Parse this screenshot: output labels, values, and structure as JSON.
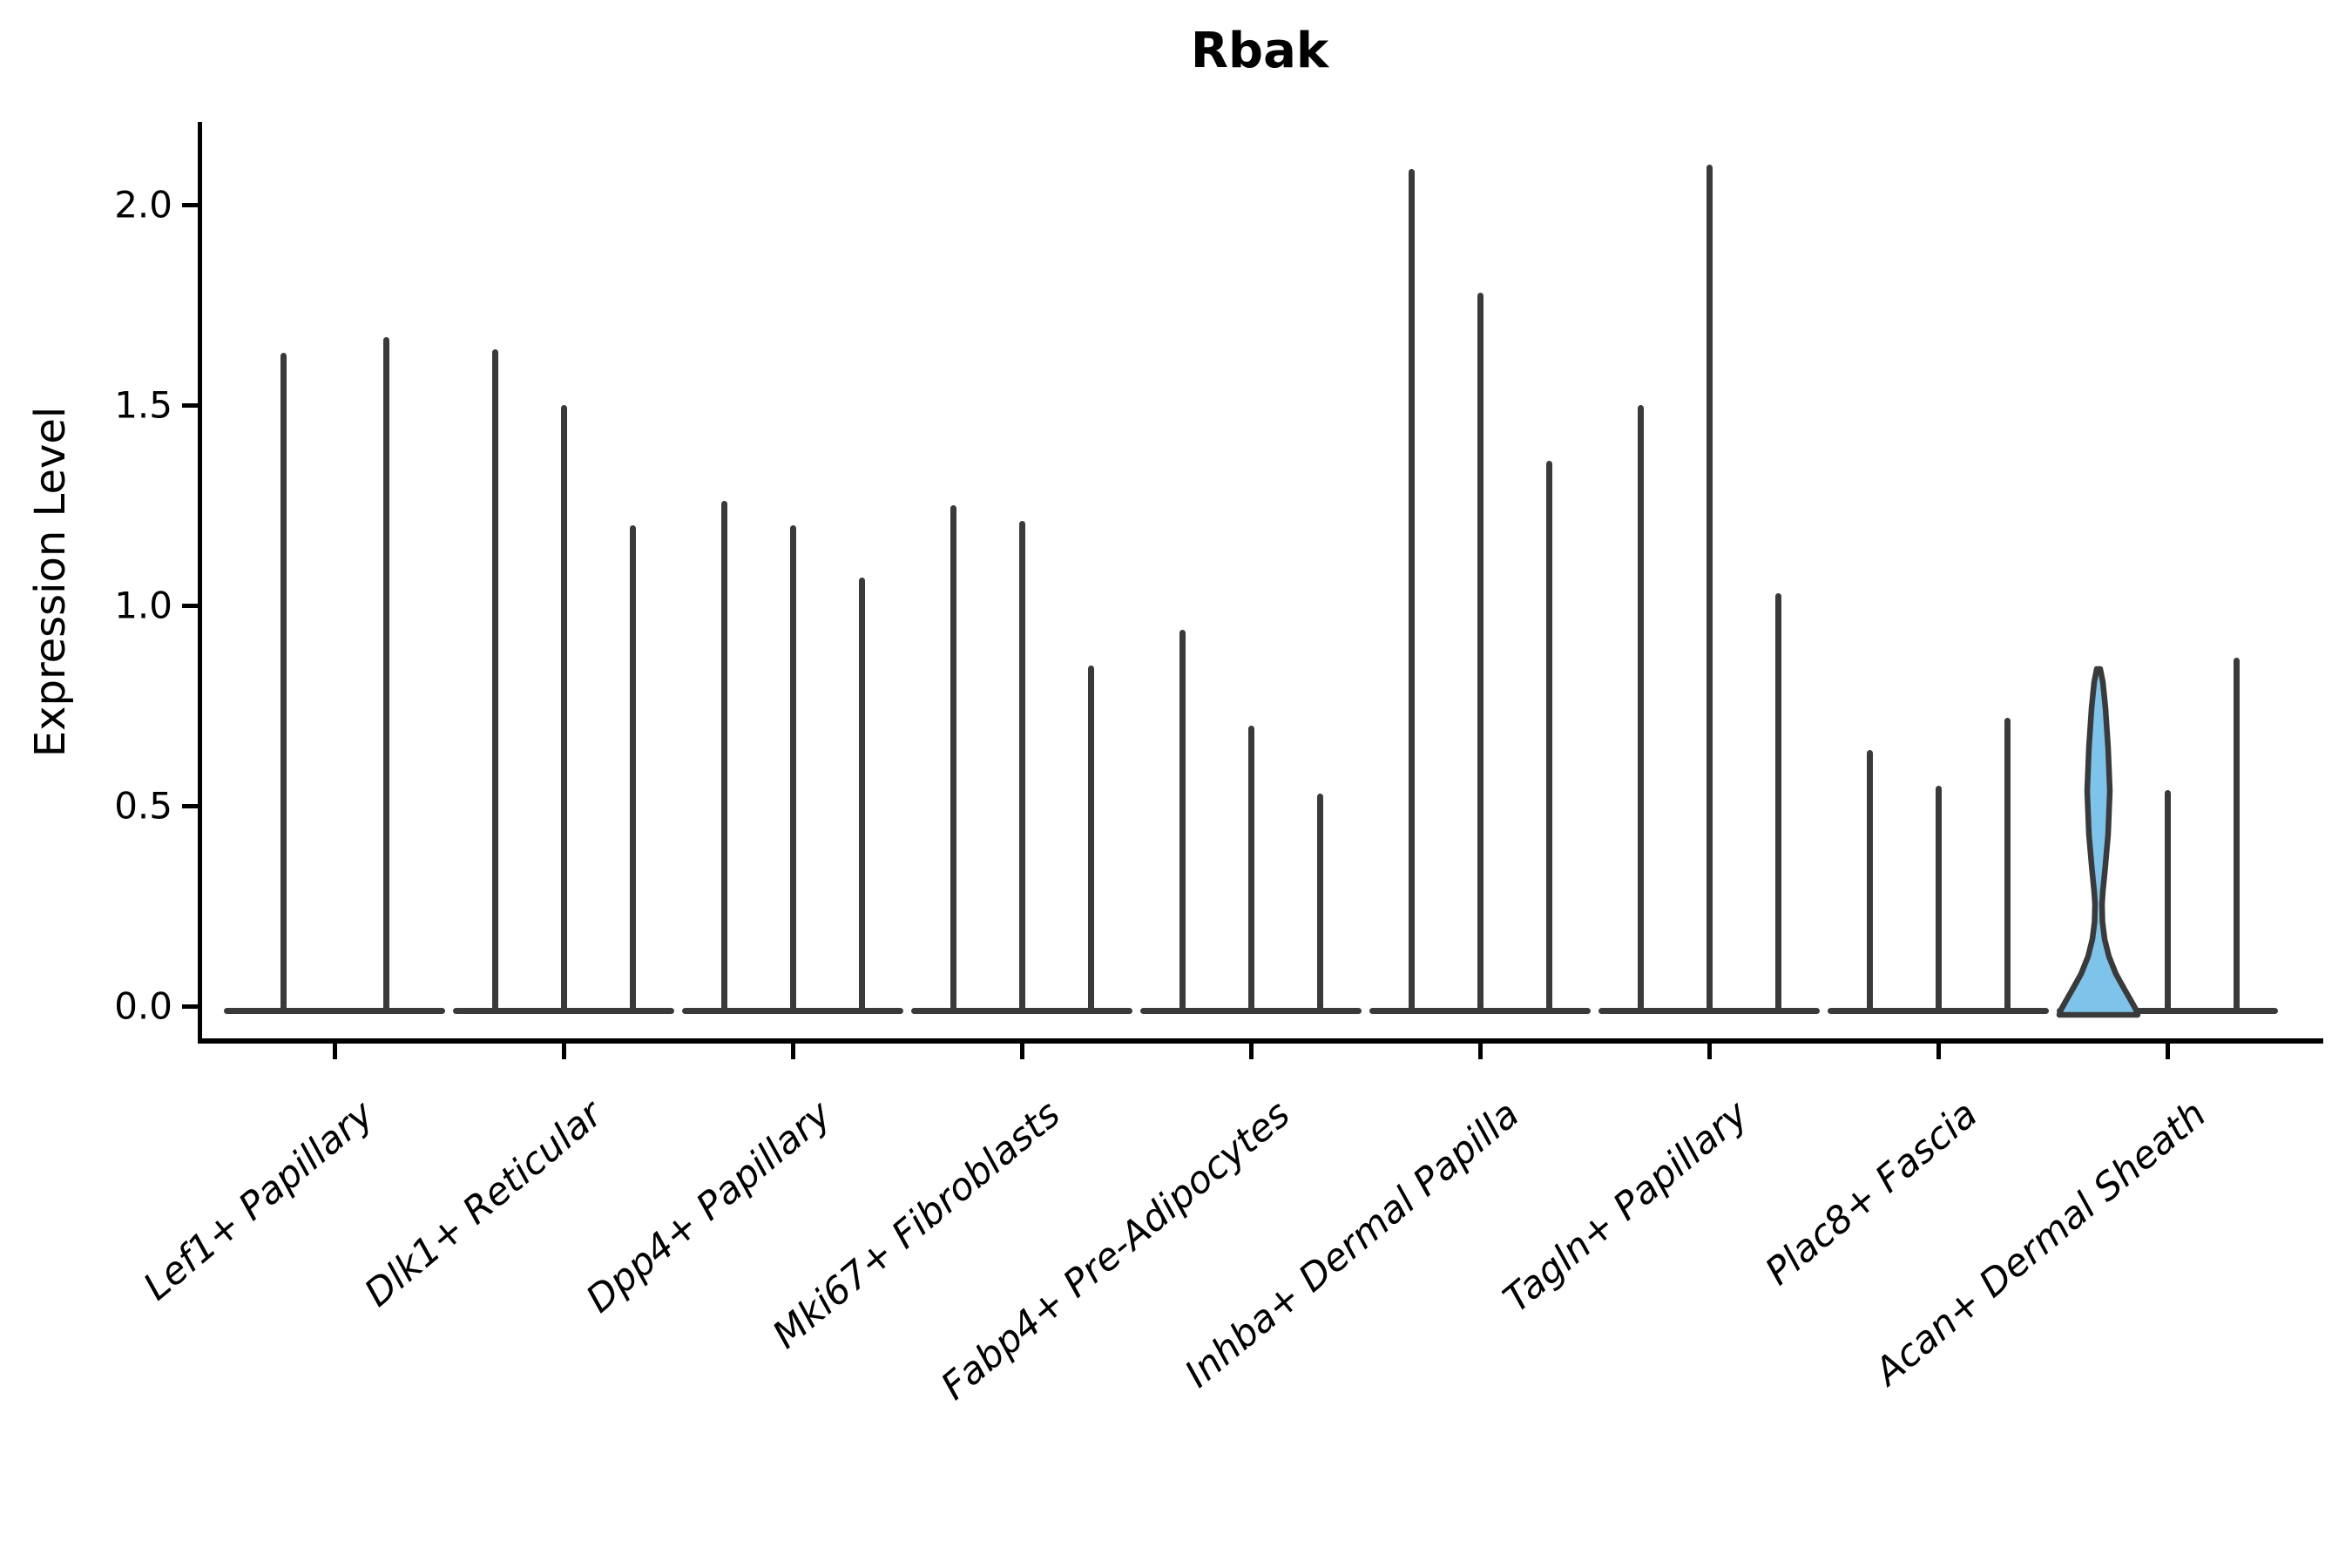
{
  "figure": {
    "title": "Rbak",
    "ylabel": "Expression Level"
  },
  "colors": {
    "background": "#ffffff",
    "axis": "#000000",
    "text": "#000000",
    "spike": "#3a3a3a",
    "violin_edge": "#3a3a3a",
    "violin_fill": "#7ec3ea"
  },
  "chart_data": {
    "type": "violin",
    "title": "Rbak",
    "xlabel": "",
    "ylabel": "Expression Level",
    "yticks": [
      "0.0",
      "0.5",
      "1.0",
      "1.5",
      "2.0"
    ],
    "ytick_values": [
      0.0,
      0.5,
      1.0,
      1.5,
      2.0
    ],
    "ylim": [
      -0.12,
      2.25
    ],
    "grid": false,
    "legend": null,
    "categories": [
      "Lef1+ Papillary",
      "Dlk1+ Reticular",
      "Dpp4+ Papillary",
      "Mki67+ Fibroblasts",
      "Fabp4+ Pre-Adipocytes",
      "Inhba+ Dermal Papilla",
      "Tagln+ Papillary",
      "Plac8+ Fascia",
      "Acan+ Dermal Sheath"
    ],
    "groups": [
      {
        "category": "Lef1+ Papillary",
        "violins": [
          {
            "offset": -59,
            "max": 1.63,
            "filled": false
          },
          {
            "offset": 59,
            "max": 1.67,
            "filled": false
          }
        ]
      },
      {
        "category": "Dlk1+ Reticular",
        "violins": [
          {
            "offset": -79,
            "max": 1.64,
            "filled": false
          },
          {
            "offset": 0,
            "max": 1.5,
            "filled": false
          },
          {
            "offset": 79,
            "max": 1.2,
            "filled": false
          }
        ]
      },
      {
        "category": "Dpp4+ Papillary",
        "violins": [
          {
            "offset": -79,
            "max": 1.26,
            "filled": false
          },
          {
            "offset": 0,
            "max": 1.2,
            "filled": false
          },
          {
            "offset": 79,
            "max": 1.07,
            "filled": false
          }
        ]
      },
      {
        "category": "Mki67+ Fibroblasts",
        "violins": [
          {
            "offset": -79,
            "max": 1.25,
            "filled": false
          },
          {
            "offset": 0,
            "max": 1.21,
            "filled": false
          },
          {
            "offset": 79,
            "max": 0.85,
            "filled": false
          }
        ]
      },
      {
        "category": "Fabp4+ Pre-Adipocytes",
        "violins": [
          {
            "offset": -79,
            "max": 0.94,
            "filled": false
          },
          {
            "offset": 0,
            "max": 0.7,
            "filled": false
          },
          {
            "offset": 79,
            "max": 0.53,
            "filled": false
          }
        ]
      },
      {
        "category": "Inhba+ Dermal Papilla",
        "violins": [
          {
            "offset": -79,
            "max": 2.09,
            "filled": false
          },
          {
            "offset": 0,
            "max": 1.78,
            "filled": false
          },
          {
            "offset": 79,
            "max": 1.36,
            "filled": false
          }
        ]
      },
      {
        "category": "Tagln+ Papillary",
        "violins": [
          {
            "offset": -79,
            "max": 1.5,
            "filled": false
          },
          {
            "offset": 0,
            "max": 2.1,
            "filled": false
          },
          {
            "offset": 79,
            "max": 1.03,
            "filled": false
          }
        ]
      },
      {
        "category": "Plac8+ Fascia",
        "violins": [
          {
            "offset": -79,
            "max": 0.64,
            "filled": false
          },
          {
            "offset": 0,
            "max": 0.55,
            "filled": false
          },
          {
            "offset": 79,
            "max": 0.72,
            "filled": false
          }
        ]
      },
      {
        "category": "Acan+ Dermal Sheath",
        "violins": [
          {
            "offset": -79,
            "max": 0.85,
            "filled": true
          },
          {
            "offset": 0,
            "max": 0.54,
            "filled": false
          },
          {
            "offset": 79,
            "max": 0.87,
            "filled": false
          }
        ]
      }
    ],
    "highlight_violin": {
      "category": "Acan+ Dermal Sheath",
      "max": 0.85,
      "fill_color": "#7ec3ea",
      "edge_color": "#3a3a3a",
      "profile": [
        [
          0,
          2
        ],
        [
          15,
          5
        ],
        [
          45,
          8
        ],
        [
          90,
          11
        ],
        [
          140,
          13
        ],
        [
          190,
          11
        ],
        [
          230,
          7.5
        ],
        [
          255,
          5
        ],
        [
          270,
          4
        ],
        [
          290,
          4.5
        ],
        [
          310,
          7
        ],
        [
          330,
          12
        ],
        [
          350,
          20
        ],
        [
          368,
          30
        ],
        [
          382,
          38
        ],
        [
          391,
          43
        ],
        [
          397,
          45
        ]
      ]
    }
  }
}
